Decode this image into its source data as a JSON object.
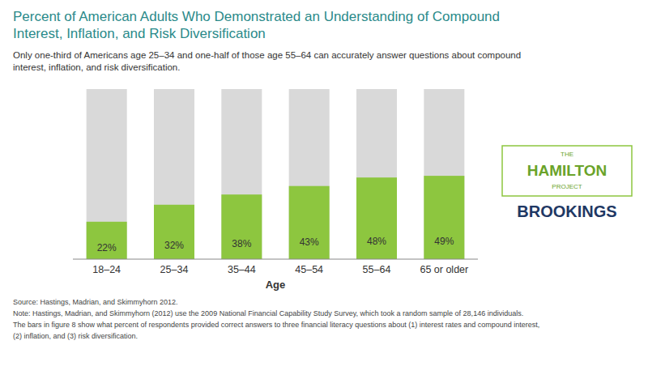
{
  "chart_data": {
    "type": "bar",
    "title": "Percent of American Adults Who Demonstrated an Understanding of Compound\nInterest, Inflation, and Risk Diversification",
    "subtitle": "Only one-third of Americans age 25–34 and one-half of those age 55–64 can accurately answer questions about compound\ninterest, inflation, and risk diversification.",
    "x_label": "Age",
    "categories": [
      "18–24",
      "25–34",
      "35–44",
      "45–54",
      "55–64",
      "65 or older"
    ],
    "values": [
      22,
      32,
      38,
      43,
      48,
      49
    ],
    "value_labels": [
      "22%",
      "32%",
      "38%",
      "43%",
      "48%",
      "49%"
    ],
    "total": 100,
    "color": "#8dc63f",
    "ylim": [
      0,
      100
    ],
    "data_labels": true,
    "tick_labels": "x",
    "grid": false,
    "source": "Source: Hastings, Madrian, and Skimmyhorn 2012.",
    "notes": [
      "Note: Hastings, Madrian, and Skimmyhorn (2012) use the 2009 National Financial Capability Study Survey, which took a random sample of 28,146 individuals.",
      "The bars in figure 8 show what percent of respondents provided correct answers to three financial literacy questions about (1) interest rates and compound interest,",
      "(2) inflation, and (3) risk diversification."
    ],
    "logo": [
      "THE",
      "HAMILTON",
      "PROJECT",
      "BROOKINGS"
    ]
  }
}
